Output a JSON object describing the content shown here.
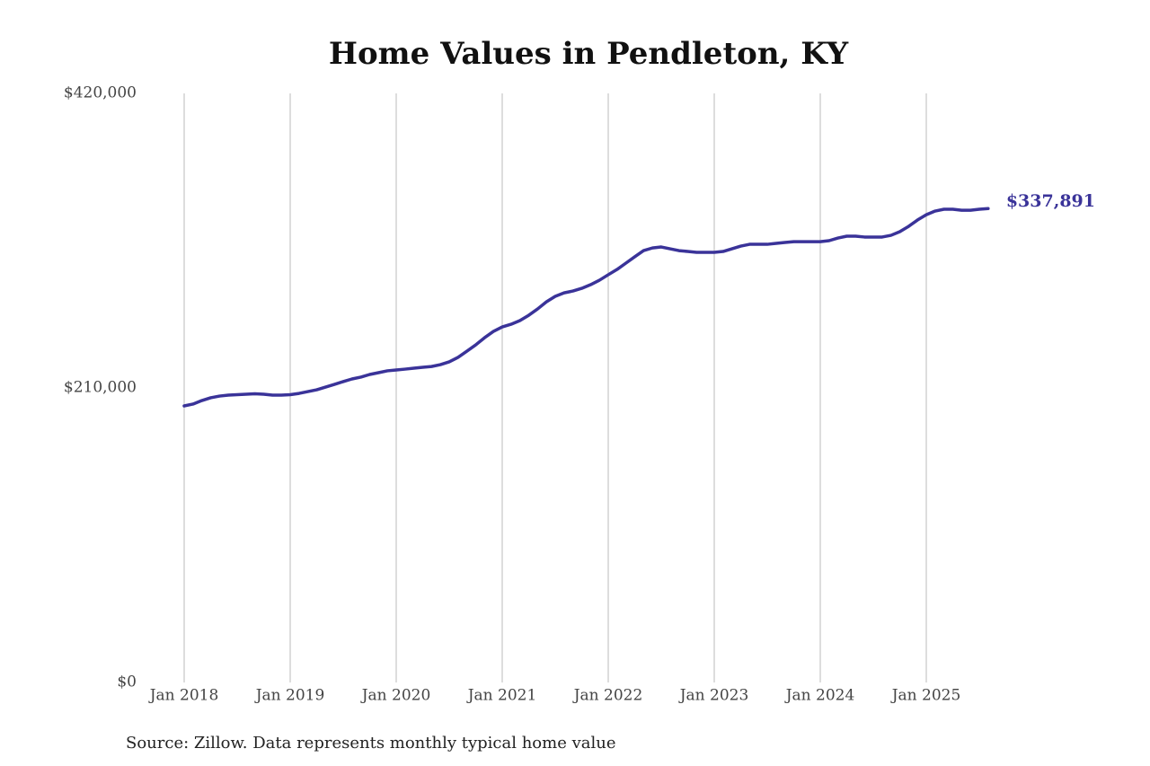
{
  "chart_data": {
    "type": "line",
    "title": "Home Values in Pendleton, KY",
    "source": "Source: Zillow. Data represents monthly typical home value",
    "x": [
      "2018-01",
      "2018-02",
      "2018-03",
      "2018-04",
      "2018-05",
      "2018-06",
      "2018-07",
      "2018-08",
      "2018-09",
      "2018-10",
      "2018-11",
      "2018-12",
      "2019-01",
      "2019-02",
      "2019-03",
      "2019-04",
      "2019-05",
      "2019-06",
      "2019-07",
      "2019-08",
      "2019-09",
      "2019-10",
      "2019-11",
      "2019-12",
      "2020-01",
      "2020-02",
      "2020-03",
      "2020-04",
      "2020-05",
      "2020-06",
      "2020-07",
      "2020-08",
      "2020-09",
      "2020-10",
      "2020-11",
      "2020-12",
      "2021-01",
      "2021-02",
      "2021-03",
      "2021-04",
      "2021-05",
      "2021-06",
      "2021-07",
      "2021-08",
      "2021-09",
      "2021-10",
      "2021-11",
      "2021-12",
      "2022-01",
      "2022-02",
      "2022-03",
      "2022-04",
      "2022-05",
      "2022-06",
      "2022-07",
      "2022-08",
      "2022-09",
      "2022-10",
      "2022-11",
      "2022-12",
      "2023-01",
      "2023-02",
      "2023-03",
      "2023-04",
      "2023-05",
      "2023-06",
      "2023-07",
      "2023-08",
      "2023-09",
      "2023-10",
      "2023-11",
      "2023-12",
      "2024-01",
      "2024-02",
      "2024-03",
      "2024-04",
      "2024-05",
      "2024-06",
      "2024-07",
      "2024-08",
      "2024-09",
      "2024-10",
      "2024-11",
      "2024-12",
      "2025-01",
      "2025-02",
      "2025-03",
      "2025-04",
      "2025-05",
      "2025-06",
      "2025-07",
      "2025-08"
    ],
    "values": [
      197200,
      198500,
      201000,
      203000,
      204200,
      204900,
      205200,
      205500,
      205800,
      205500,
      204900,
      204900,
      205200,
      206100,
      207400,
      208700,
      210600,
      212500,
      214500,
      216400,
      217700,
      219600,
      220900,
      222200,
      222800,
      223400,
      224100,
      224700,
      225300,
      226600,
      228600,
      231800,
      236200,
      240700,
      245800,
      250300,
      253500,
      255400,
      258000,
      261800,
      266300,
      271400,
      275300,
      277800,
      279100,
      281000,
      283600,
      286800,
      290700,
      294500,
      299000,
      303500,
      307900,
      309800,
      310500,
      309200,
      307900,
      307300,
      306700,
      306700,
      306700,
      307300,
      309200,
      311100,
      312400,
      312400,
      312400,
      313100,
      313700,
      314300,
      314300,
      314300,
      314300,
      315000,
      316900,
      318200,
      318200,
      317600,
      317600,
      317600,
      318800,
      321400,
      325200,
      329700,
      333500,
      336100,
      337400,
      337400,
      336700,
      336700,
      337400,
      337891
    ],
    "value_labels": [
      null,
      null,
      null,
      null,
      null,
      null,
      null,
      null,
      null,
      null,
      null,
      null,
      null,
      null,
      null,
      null,
      null,
      null,
      null,
      null,
      null,
      null,
      null,
      null,
      null,
      null,
      null,
      null,
      null,
      null,
      null,
      null,
      null,
      null,
      null,
      null,
      null,
      null,
      null,
      null,
      null,
      null,
      null,
      null,
      null,
      null,
      null,
      null,
      null,
      null,
      null,
      null,
      null,
      null,
      null,
      null,
      null,
      null,
      null,
      null,
      null,
      null,
      null,
      null,
      null,
      null,
      null,
      null,
      null,
      null,
      null,
      null,
      null,
      null,
      null,
      null,
      null,
      null,
      null,
      null,
      null,
      null,
      null,
      null,
      null,
      null,
      null,
      null,
      null,
      null,
      null,
      "$337,891"
    ],
    "color": "#3a3399",
    "ylim": [
      0,
      420000
    ],
    "yticks": [
      {
        "value": 0,
        "label": "$0"
      },
      {
        "value": 210000,
        "label": "$210,000"
      },
      {
        "value": 420000,
        "label": "$420,000"
      }
    ],
    "xticks": [
      {
        "value": "2018-01",
        "label": "Jan 2018"
      },
      {
        "value": "2019-01",
        "label": "Jan 2019"
      },
      {
        "value": "2020-01",
        "label": "Jan 2020"
      },
      {
        "value": "2021-01",
        "label": "Jan 2021"
      },
      {
        "value": "2022-01",
        "label": "Jan 2022"
      },
      {
        "value": "2023-01",
        "label": "Jan 2023"
      },
      {
        "value": "2024-01",
        "label": "Jan 2024"
      },
      {
        "value": "2025-01",
        "label": "Jan 2025"
      }
    ],
    "grid": "x"
  }
}
